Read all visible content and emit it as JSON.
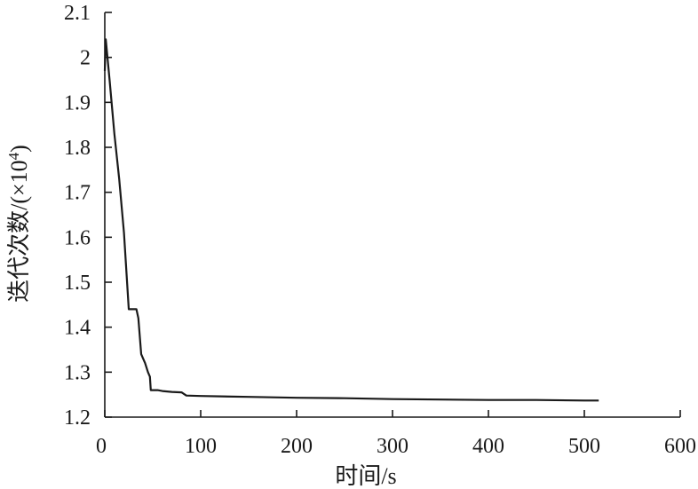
{
  "chart_data": {
    "type": "line",
    "xlabel": "时间/s",
    "ylabel": {
      "text": "迭代次数/(×10",
      "superscript": "4",
      "suffix": ")"
    },
    "xlim": [
      0,
      600
    ],
    "ylim": [
      1.2,
      2.1
    ],
    "x_ticks": [
      0,
      100,
      200,
      300,
      400,
      500,
      600
    ],
    "x_tick_labels": [
      "0",
      "100",
      "200",
      "300",
      "400",
      "500",
      "600"
    ],
    "y_ticks": [
      1.2,
      1.3,
      1.4,
      1.5,
      1.6,
      1.7,
      1.8,
      1.9,
      2.0,
      2.1
    ],
    "y_tick_labels": [
      "1.2",
      "1.3",
      "1.4",
      "1.5",
      "1.6",
      "1.7",
      "1.8",
      "1.9",
      "2",
      "2.1"
    ],
    "grid": false,
    "series": [
      {
        "x": [
          0,
          1,
          5,
          10,
          15,
          20,
          25,
          30,
          33,
          35,
          38,
          42,
          45,
          47,
          48,
          50,
          55,
          60,
          70,
          80,
          85,
          100,
          150,
          200,
          250,
          300,
          350,
          400,
          450,
          500,
          515
        ],
        "y": [
          1.97,
          2.04,
          1.95,
          1.83,
          1.73,
          1.61,
          1.44,
          1.44,
          1.44,
          1.42,
          1.34,
          1.32,
          1.3,
          1.29,
          1.26,
          1.26,
          1.26,
          1.258,
          1.256,
          1.255,
          1.248,
          1.247,
          1.245,
          1.243,
          1.242,
          1.24,
          1.239,
          1.238,
          1.238,
          1.237,
          1.237
        ]
      }
    ]
  }
}
